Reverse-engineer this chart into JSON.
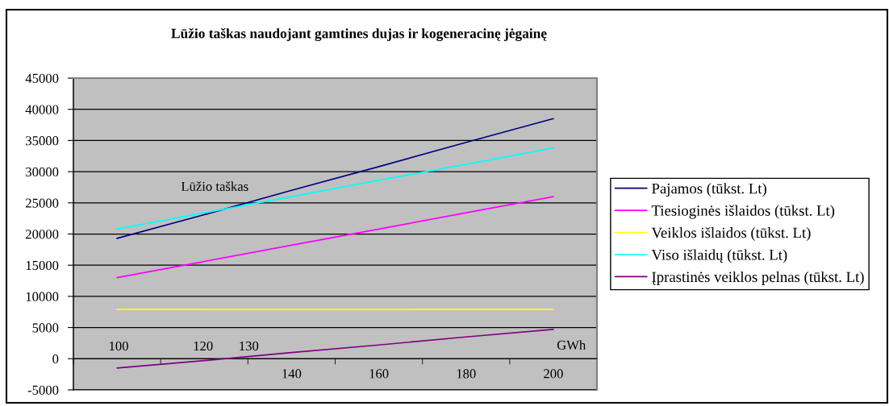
{
  "chart_data": {
    "type": "line",
    "title": "Lūžio taškas naudojant gamtines dujas ir kogeneracinę jėgainę",
    "categories": [
      null,
      null,
      "140",
      "160",
      "180",
      "200"
    ],
    "xlabel": "GWh",
    "series": [
      {
        "name": "Pajamos (tūkst. Lt)",
        "color": "#000080",
        "values": [
          19300,
          23100,
          27000,
          30800,
          34700,
          38500
        ]
      },
      {
        "name": "Tiesioginės išlaidos (tūkst. Lt)",
        "color": "#ff00ff",
        "values": [
          13000,
          15600,
          18200,
          20800,
          23400,
          26000
        ]
      },
      {
        "name": "Veiklos išlaidos (tūkst. Lt)",
        "color": "#ffff00",
        "values": [
          7900,
          7900,
          7900,
          7900,
          7900,
          7900
        ]
      },
      {
        "name": "Viso išlaidų (tūkst. Lt)",
        "color": "#00ffff",
        "values": [
          20800,
          23400,
          26000,
          28600,
          31200,
          33800
        ]
      },
      {
        "name": "Įprastinės veiklos pelnas (tūkst. Lt)",
        "color": "#800080",
        "values": [
          -1500,
          -300,
          1000,
          2200,
          3500,
          4700
        ]
      }
    ],
    "ylim": [
      -5000,
      45000
    ],
    "yticks": [
      -5000,
      0,
      5000,
      10000,
      15000,
      20000,
      25000,
      30000,
      35000,
      40000,
      45000
    ],
    "grid": "y",
    "legend": "right",
    "annotations": [
      "Lūžio taškas",
      "100",
      "120",
      "130"
    ]
  }
}
